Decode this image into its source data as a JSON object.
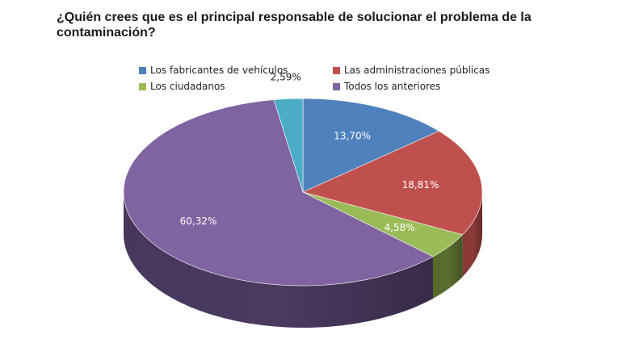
{
  "chart_data": {
    "type": "pie",
    "title": "¿Quién crees que es el principal responsable de solucionar el problema de la contaminación?",
    "legend_position": "top",
    "slices": [
      {
        "name": "Los fabricantes de vehículos",
        "value": 13.7,
        "label": "13,70%",
        "color": "#4f81bd",
        "side": "#3a6089"
      },
      {
        "name": "Las administraciones públicas",
        "value": 18.81,
        "label": "18,81%",
        "color": "#c0504d",
        "side": "#8c3a37"
      },
      {
        "name": "Los ciudadanos",
        "value": 4.58,
        "label": "4,58%",
        "color": "#9bbb59",
        "side": "#5a6e2e"
      },
      {
        "name": "Todos los anteriores",
        "value": 60.32,
        "label": "60,32%",
        "color": "#8064a2",
        "side": "#4a3a60"
      },
      {
        "name": "",
        "value": 2.59,
        "label": "2,59%",
        "color": "#4bacc6",
        "side": "#2f7a8d"
      }
    ],
    "legend": [
      {
        "name": "Los fabricantes de vehículos",
        "color": "#4f81bd"
      },
      {
        "name": "Las administraciones públicas",
        "color": "#c0504d"
      },
      {
        "name": "Los ciudadanos",
        "color": "#9bbb59"
      },
      {
        "name": "Todos los anteriores",
        "color": "#8064a2"
      }
    ]
  }
}
